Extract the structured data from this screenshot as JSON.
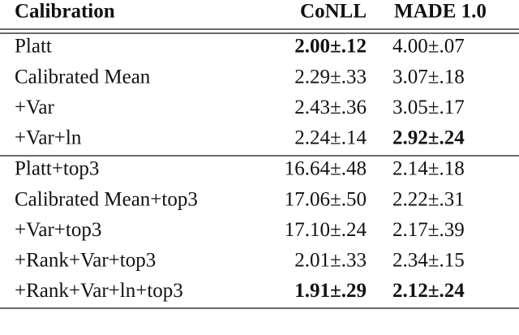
{
  "table": {
    "header": [
      "Calibration",
      "CoNLL",
      "MADE 1.0"
    ],
    "groups": [
      [
        {
          "cells": [
            "Platt",
            "2.00±.12",
            "4.00±.07"
          ],
          "bold": [
            false,
            true,
            false
          ]
        },
        {
          "cells": [
            "Calibrated Mean",
            "2.29±.33",
            "3.07±.18"
          ],
          "bold": [
            false,
            false,
            false
          ]
        },
        {
          "cells": [
            "+Var",
            "2.43±.36",
            "3.05±.17"
          ],
          "bold": [
            false,
            false,
            false
          ]
        },
        {
          "cells": [
            "+Var+ln",
            "2.24±.14",
            "2.92±.24"
          ],
          "bold": [
            false,
            false,
            true
          ]
        }
      ],
      [
        {
          "cells": [
            "Platt+top3",
            "16.64±.48",
            "2.14±.18"
          ],
          "bold": [
            false,
            false,
            false
          ]
        },
        {
          "cells": [
            "Calibrated Mean+top3",
            "17.06±.50",
            "2.22±.31"
          ],
          "bold": [
            false,
            false,
            false
          ]
        },
        {
          "cells": [
            "+Var+top3",
            "17.10±.24",
            "2.17±.39"
          ],
          "bold": [
            false,
            false,
            false
          ]
        },
        {
          "cells": [
            "+Rank+Var+top3",
            "2.01±.33",
            "2.34±.15"
          ],
          "bold": [
            false,
            false,
            false
          ]
        },
        {
          "cells": [
            "+Rank+Var+ln+top3",
            "1.91±.29",
            "2.12±.24"
          ],
          "bold": [
            false,
            true,
            true
          ]
        }
      ]
    ]
  }
}
